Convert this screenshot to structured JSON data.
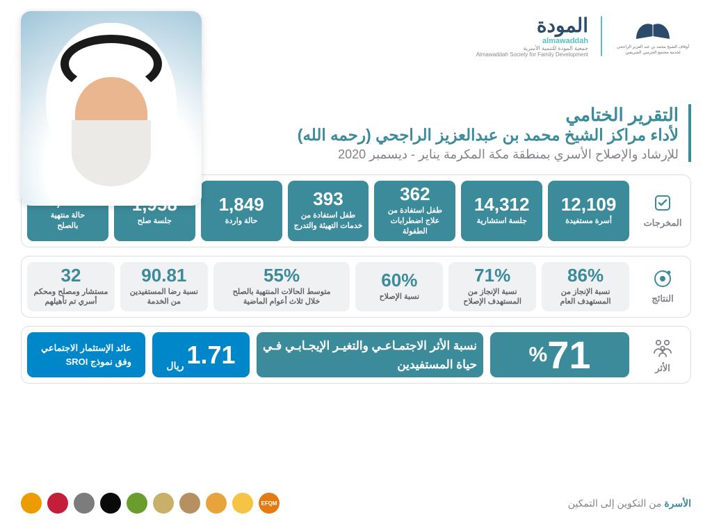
{
  "colors": {
    "teal": "#3b8b9b",
    "teal_light": "#54c0bf",
    "blue": "#0087c9",
    "grey_text": "#808389",
    "grey_cell": "#f0f1f2",
    "border": "#dcdfe2",
    "logo_navy": "#2c4b6b"
  },
  "logo": {
    "ar": "المودة",
    "en": "almawaddah",
    "sub1": "جمعية المودة للتنمية الأسرية",
    "sub2": "Almawaddah Society for Family Development",
    "book_sub": "أوقاف الشيخ محمد بن عبد العزيز الراجحي\nلخدمة مجتمع الحرمين الشريفين"
  },
  "title": {
    "l1": "التقرير الختامي",
    "l2": "لأداء مراكز الشيخ محمد بن عبدالعزيز الراجحي (رحمه الله)",
    "l3": "للإرشاد والإصلاح الأسري بمنطقة مكة المكرمة يناير - ديسمبر 2020"
  },
  "row1": {
    "side": "المخرجات",
    "cells": [
      {
        "num": "12,109",
        "lbl": "أسرة مستفيدة"
      },
      {
        "num": "14,312",
        "lbl": "جلسة استشارية"
      },
      {
        "num": "362",
        "lbl": "طفل استفادة من\nعلاج اضطرابات الطفولة"
      },
      {
        "num": "393",
        "lbl": "طفل استفادة من\nخدمات التهيئة والتدرج"
      },
      {
        "num": "1,849",
        "lbl": "حالة واردة"
      },
      {
        "num": "1,958",
        "lbl": "جلسة صلح"
      },
      {
        "num": "1,118",
        "lbl": "حالة منتهية\nبالصلح"
      }
    ]
  },
  "row2": {
    "side": "النتائج",
    "cells": [
      {
        "num": "86%",
        "lbl": "نسبة الإنجاز من\nالمستهدف العام",
        "flex": 1
      },
      {
        "num": "71%",
        "lbl": "نسبة الإنجاز من\nالمستهدف الإصلاح",
        "flex": 1
      },
      {
        "num": "60%",
        "lbl": "نسبة الإصلاح",
        "flex": 1
      },
      {
        "num": "55%",
        "lbl": "متوسط الحالات المنتهية بالصلح\nخلال ثلاث أعوام الماضية",
        "flex": 1.6
      },
      {
        "num": "90.81",
        "lbl": "نسبة رضا المستفيدين\nمن الخدمة",
        "flex": 1
      },
      {
        "num": "32",
        "lbl": "مستشار ومصلح ومحكم\nأسري تم تأهيلهم",
        "flex": 1
      }
    ]
  },
  "row3": {
    "side": "الأثر",
    "big_num": "71",
    "big_pct": "%",
    "impact_text": "نسبة الأثر الاجتمـاعـي والتغيـر الإيجـابـي فـي\nحياة المستفيدين",
    "sroi_val": "1.71",
    "sroi_unit": "ريال",
    "sroi_lbl": "عائد الإستثمار الاجتماعي\nوفق نموذج SROI"
  },
  "footer": {
    "tagline_bold": "الأسرة",
    "tagline_rest": " من التكوين إلى التمكين",
    "badges": [
      {
        "bg": "#ed9c00",
        "txt": ""
      },
      {
        "bg": "#c41e3a",
        "txt": ""
      },
      {
        "bg": "#7c7c7c",
        "txt": ""
      },
      {
        "bg": "#0a0a0a",
        "txt": ""
      },
      {
        "bg": "#6a9c2e",
        "txt": ""
      },
      {
        "bg": "#c9b06a",
        "txt": ""
      },
      {
        "bg": "#b69060",
        "txt": ""
      },
      {
        "bg": "#e8a33d",
        "txt": ""
      },
      {
        "bg": "#f6c445",
        "txt": ""
      },
      {
        "bg": "#e37b10",
        "txt": "EFQM"
      }
    ]
  }
}
